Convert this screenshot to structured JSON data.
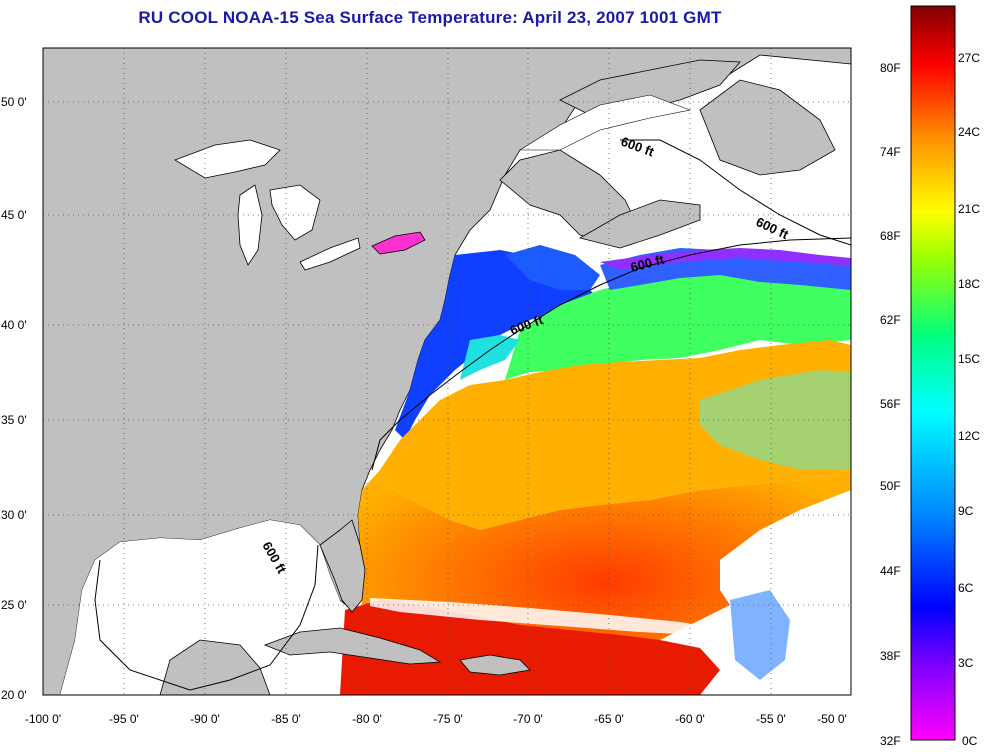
{
  "title": "RU COOL  NOAA-15  Sea Surface Temperature:  April 23, 2007 1001 GMT",
  "map": {
    "lon_ticks": [
      "-100 0'",
      "-95 0'",
      "-90 0'",
      "-85 0'",
      "-80 0'",
      "-75 0'",
      "-70 0'",
      "-65 0'",
      "-60 0'",
      "-55 0'",
      "-50 0'"
    ],
    "lat_ticks": [
      "50 0'",
      "45 0'",
      "40 0'",
      "35 0'",
      "30 0'",
      "25 0'",
      "20 0'"
    ],
    "contour_labels": [
      "600 ft",
      "600 ft",
      "600 ft",
      "600 ft",
      "600 ft"
    ],
    "land_color": "#c0c0c0",
    "nodata_color": "#ffffff"
  },
  "colorbar": {
    "fahrenheit_labels": [
      "80F",
      "74F",
      "68F",
      "62F",
      "56F",
      "50F",
      "44F",
      "38F",
      "32F"
    ],
    "celsius_labels": [
      "27C",
      "24C",
      "21C",
      "18C",
      "15C",
      "12C",
      "9C",
      "6C",
      "3C",
      "0C"
    ],
    "colors": [
      "#ff00ff",
      "#8000ff",
      "#0000ff",
      "#0080ff",
      "#00ffff",
      "#00ff80",
      "#80ff00",
      "#ffff00",
      "#ff8000",
      "#ff0000",
      "#800000"
    ]
  }
}
